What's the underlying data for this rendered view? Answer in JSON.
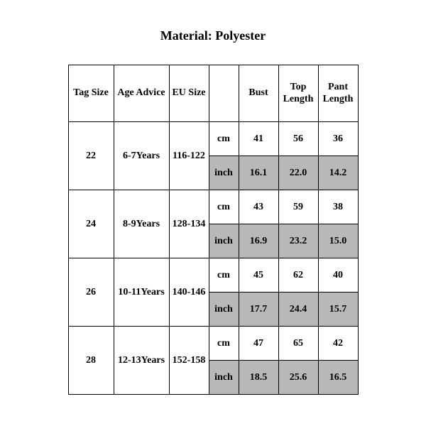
{
  "title": "Material: Polyester",
  "table": {
    "columns": {
      "tag": "Tag Size",
      "age": "Age Advice",
      "eu": "EU Size",
      "unit": "",
      "bust": "Bust",
      "top": "Top Length",
      "pant": "Pant Length"
    },
    "unit_cm": "cm",
    "unit_inch": "inch",
    "colors": {
      "shade_bg": "#b8b8b8",
      "border": "#000000",
      "text": "#000000",
      "bg": "#ffffff"
    },
    "rows": [
      {
        "tag": "22",
        "age": "6-7Years",
        "eu": "116-122",
        "cm": {
          "bust": "41",
          "top": "56",
          "pant": "36"
        },
        "inch": {
          "bust": "16.1",
          "top": "22.0",
          "pant": "14.2"
        }
      },
      {
        "tag": "24",
        "age": "8-9Years",
        "eu": "128-134",
        "cm": {
          "bust": "43",
          "top": "59",
          "pant": "38"
        },
        "inch": {
          "bust": "16.9",
          "top": "23.2",
          "pant": "15.0"
        }
      },
      {
        "tag": "26",
        "age": "10-11Years",
        "eu": "140-146",
        "cm": {
          "bust": "45",
          "top": "62",
          "pant": "40"
        },
        "inch": {
          "bust": "17.7",
          "top": "24.4",
          "pant": "15.7"
        }
      },
      {
        "tag": "28",
        "age": "12-13Years",
        "eu": "152-158",
        "cm": {
          "bust": "47",
          "top": "65",
          "pant": "42"
        },
        "inch": {
          "bust": "18.5",
          "top": "25.6",
          "pant": "16.5"
        }
      }
    ]
  }
}
